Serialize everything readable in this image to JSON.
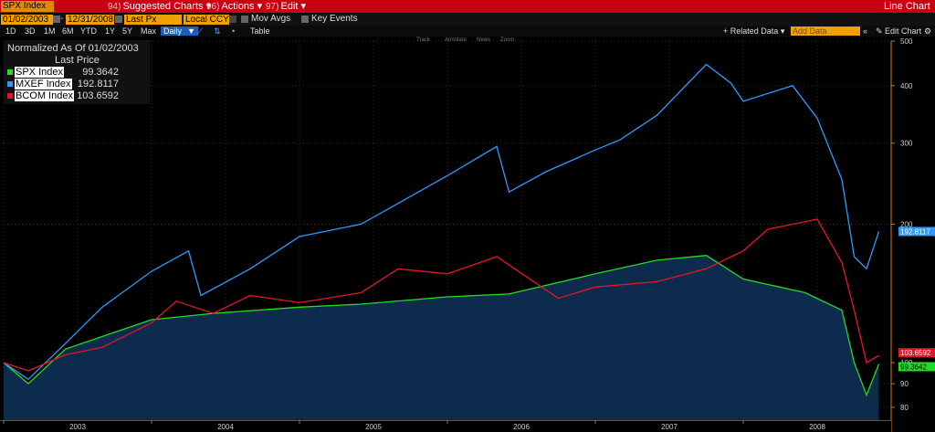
{
  "toolbar1": {
    "ticker": "SPX Index",
    "btn1_num": "94)",
    "btn1_label": "Suggested Charts",
    "btn2_num": "96)",
    "btn2_label": "Actions",
    "btn3_num": "97)",
    "btn3_label": "Edit",
    "chart_type": "Line Chart"
  },
  "toolbar2": {
    "start_date": "01/02/2003",
    "end_date": "12/31/2008",
    "field": "Last Px",
    "currency": "Local CCY",
    "mov_avgs": "Mov Avgs",
    "key_events": "Key Events"
  },
  "toolbar3": {
    "periods": [
      "1D",
      "3D",
      "1M",
      "6M",
      "YTD",
      "1Y",
      "5Y",
      "Max"
    ],
    "frequency": "Daily",
    "table": "Table",
    "related": "Related Data",
    "add_data": "Add Data",
    "edit_chart": "Edit Chart"
  },
  "tools": [
    "Track",
    "Annotate",
    "News",
    "Zoom"
  ],
  "legend": {
    "title": "Normalized As Of 01/02/2003",
    "subtitle": "Last Price",
    "items": [
      {
        "name": "SPX Index",
        "value": "99.3642",
        "color": "#22dd22"
      },
      {
        "name": "MXEF Index",
        "value": "192.8117",
        "color": "#2b9bff"
      },
      {
        "name": "BCOM Index",
        "value": "103.6592",
        "color": "#e8142a"
      }
    ]
  },
  "chart_data": {
    "type": "line",
    "yscale": "log",
    "ylim": [
      75,
      500
    ],
    "yticks": [
      500,
      400,
      300,
      200,
      100,
      90,
      80
    ],
    "xlabels": [
      "2003",
      "2004",
      "2005",
      "2006",
      "2007",
      "2008"
    ],
    "series": [
      {
        "name": "SPX Index",
        "color": "#22dd22",
        "fill": true,
        "x": [
          "2003-01",
          "2003-03",
          "2003-06",
          "2003-09",
          "2004-01",
          "2004-06",
          "2005-01",
          "2005-06",
          "2006-01",
          "2006-06",
          "2007-01",
          "2007-06",
          "2007-10",
          "2008-01",
          "2008-06",
          "2008-09",
          "2008-10",
          "2008-11",
          "2008-12"
        ],
        "values": [
          100,
          90,
          107,
          114,
          124,
          128,
          132,
          134,
          139,
          141,
          156,
          167,
          171,
          152,
          142,
          130,
          100,
          85,
          99.36
        ]
      },
      {
        "name": "MXEF Index",
        "color": "#2b9bff",
        "x": [
          "2003-01",
          "2003-03",
          "2003-06",
          "2003-09",
          "2004-01",
          "2004-04",
          "2004-05",
          "2004-09",
          "2005-01",
          "2005-06",
          "2006-01",
          "2006-05",
          "2006-06",
          "2006-09",
          "2007-01",
          "2007-03",
          "2007-06",
          "2007-10",
          "2007-12",
          "2008-01",
          "2008-05",
          "2008-07",
          "2008-09",
          "2008-10",
          "2008-11",
          "2008-12"
        ],
        "values": [
          100,
          92,
          110,
          132,
          158,
          175,
          140,
          160,
          188,
          200,
          255,
          295,
          235,
          260,
          290,
          305,
          345,
          445,
          405,
          370,
          400,
          340,
          250,
          170,
          160,
          192.81
        ]
      },
      {
        "name": "BCOM Index",
        "color": "#e8142a",
        "x": [
          "2003-01",
          "2003-03",
          "2003-06",
          "2003-09",
          "2004-01",
          "2004-03",
          "2004-06",
          "2004-09",
          "2005-01",
          "2005-06",
          "2005-09",
          "2006-01",
          "2006-05",
          "2006-08",
          "2006-10",
          "2007-01",
          "2007-06",
          "2007-10",
          "2008-01",
          "2008-03",
          "2008-07",
          "2008-09",
          "2008-10",
          "2008-11",
          "2008-12"
        ],
        "values": [
          100,
          96,
          104,
          108,
          122,
          136,
          128,
          140,
          135,
          142,
          160,
          156,
          170,
          150,
          138,
          146,
          150,
          160,
          175,
          195,
          205,
          165,
          130,
          100,
          103.66
        ]
      }
    ]
  }
}
